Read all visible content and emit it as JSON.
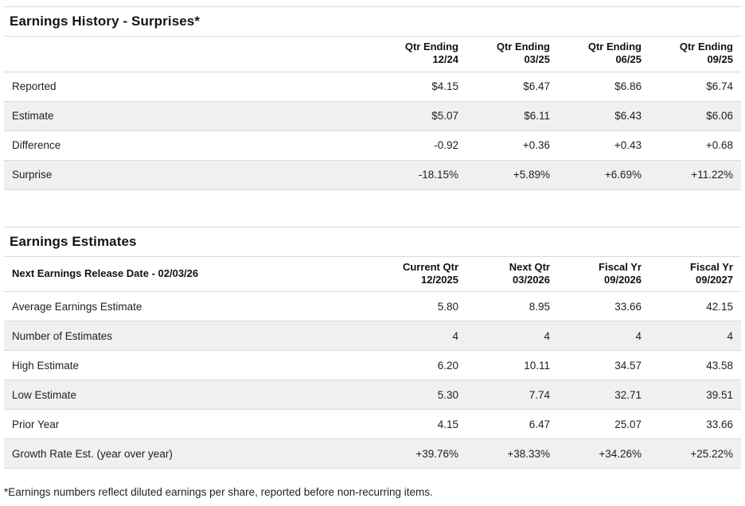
{
  "colors": {
    "positive": "#1e8a68",
    "negative": "#c43b4e",
    "row_alt_bg": "#f0f0ee",
    "border": "#d9d9d9"
  },
  "chart_data": [
    {
      "type": "table",
      "title": "Earnings History - Surprises*",
      "header_label": "",
      "columns": [
        {
          "line1": "Qtr Ending",
          "line2": "12/24"
        },
        {
          "line1": "Qtr Ending",
          "line2": "03/25"
        },
        {
          "line1": "Qtr Ending",
          "line2": "06/25"
        },
        {
          "line1": "Qtr Ending",
          "line2": "09/25"
        }
      ],
      "rows": [
        {
          "label": "Reported",
          "values": [
            "$4.15",
            "$6.47",
            "$6.86",
            "$6.74"
          ],
          "colored": false
        },
        {
          "label": "Estimate",
          "values": [
            "$5.07",
            "$6.11",
            "$6.43",
            "$6.06"
          ],
          "colored": false
        },
        {
          "label": "Difference",
          "values": [
            "-0.92",
            "+0.36",
            "+0.43",
            "+0.68"
          ],
          "colored": true
        },
        {
          "label": "Surprise",
          "values": [
            "-18.15%",
            "+5.89%",
            "+6.69%",
            "+11.22%"
          ],
          "colored": true
        }
      ]
    },
    {
      "type": "table",
      "title": "Earnings Estimates",
      "header_label": "Next Earnings Release Date - 02/03/26",
      "columns": [
        {
          "line1": "Current Qtr",
          "line2": "12/2025"
        },
        {
          "line1": "Next Qtr",
          "line2": "03/2026"
        },
        {
          "line1": "Fiscal Yr",
          "line2": "09/2026"
        },
        {
          "line1": "Fiscal Yr",
          "line2": "09/2027"
        }
      ],
      "rows": [
        {
          "label": "Average Earnings Estimate",
          "values": [
            "5.80",
            "8.95",
            "33.66",
            "42.15"
          ],
          "colored": false
        },
        {
          "label": "Number of Estimates",
          "values": [
            "4",
            "4",
            "4",
            "4"
          ],
          "colored": false
        },
        {
          "label": "High Estimate",
          "values": [
            "6.20",
            "10.11",
            "34.57",
            "43.58"
          ],
          "colored": false
        },
        {
          "label": "Low Estimate",
          "values": [
            "5.30",
            "7.74",
            "32.71",
            "39.51"
          ],
          "colored": false
        },
        {
          "label": "Prior Year",
          "values": [
            "4.15",
            "6.47",
            "25.07",
            "33.66"
          ],
          "colored": false
        },
        {
          "label": "Growth Rate Est. (year over year)",
          "values": [
            "+39.76%",
            "+38.33%",
            "+34.26%",
            "+25.22%"
          ],
          "colored": true
        }
      ]
    }
  ],
  "footnote": "*Earnings numbers reflect diluted earnings per share, reported before non-recurring items."
}
